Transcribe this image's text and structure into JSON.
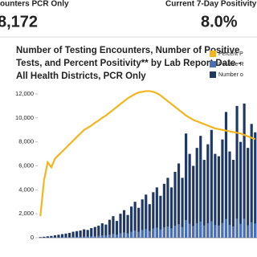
{
  "header": {
    "left_label": "ounters PCR Only",
    "left_value": "8,172",
    "right_label": "Current 7-Day Positivity",
    "right_value": "8.0%"
  },
  "chart_data": {
    "type": "bar",
    "title": [
      "Number of Testing Encounters, Number of Positive",
      "Tests, and Percent Positivity** by Lab Report Date -",
      "All Health Districts, PCR Only"
    ],
    "categories": [
      null,
      null,
      null,
      null,
      null,
      null,
      null,
      null,
      null,
      null,
      null,
      null,
      null,
      null,
      null,
      null,
      null,
      null,
      null,
      null,
      null,
      null,
      null,
      null,
      null,
      null,
      null,
      null,
      null,
      null,
      null,
      null,
      null,
      null,
      null,
      null,
      null,
      null,
      null,
      null,
      null,
      null,
      null,
      null,
      null,
      null,
      null,
      null,
      null,
      null,
      null,
      null,
      null,
      null,
      null,
      null,
      null,
      null,
      null,
      null
    ],
    "series": [
      {
        "name": "Percent P",
        "color": "#f2b51d",
        "type": "line",
        "axis": "y2",
        "values": [
          3,
          8,
          10.5,
          9.8,
          11,
          11.5,
          12,
          12.5,
          13,
          13.5,
          14,
          14.5,
          15,
          15.3,
          15.6,
          16,
          16.3,
          16.7,
          17,
          17.4,
          17.8,
          18.2,
          18.6,
          19,
          19.4,
          19.7,
          20,
          20.2,
          20.3,
          20.4,
          20.4,
          20.3,
          20.1,
          19.8,
          19.4,
          19,
          18.6,
          18.2,
          17.8,
          17.4,
          17,
          16.7,
          16.4,
          16.2,
          16,
          15.8,
          15.6,
          15.4,
          15.2,
          15.1,
          15,
          14.9,
          14.8,
          14.7,
          14.6,
          14.5,
          14.3,
          14.1,
          13.9,
          13.7
        ]
      },
      {
        "name": "Positive R",
        "color": "#4a6fb5",
        "type": "bar",
        "values": [
          2,
          6,
          13,
          15,
          22,
          29,
          36,
          44,
          52,
          68,
          77,
          87,
          105,
          100,
          125,
          144,
          163,
          200,
          187,
          261,
          320,
          255,
          372,
          437,
          369,
          504,
          591,
          500,
          646,
          734,
          570,
          774,
          844,
          693,
          873,
          940,
          781,
          1001,
          1128,
          890,
          1479,
          1169,
          984,
          1215,
          1360,
          1027,
          1217,
          1386,
          1064,
          1027,
          1232,
          1565,
          1066,
          949,
          1595,
          1160,
          1590,
          1043,
          1296,
          1188
        ]
      },
      {
        "name": "Number o",
        "color": "#1f3864",
        "type": "bar",
        "values": [
          50,
          80,
          120,
          150,
          200,
          250,
          300,
          350,
          400,
          500,
          550,
          600,
          700,
          650,
          800,
          900,
          1000,
          1200,
          1100,
          1500,
          1800,
          1400,
          2000,
          2300,
          1900,
          2600,
          3000,
          2500,
          3200,
          3600,
          2800,
          3800,
          4200,
          3500,
          4500,
          5000,
          4200,
          5500,
          6200,
          5000,
          8700,
          7000,
          6000,
          7500,
          8500,
          6500,
          7800,
          9000,
          7000,
          6800,
          8200,
          10500,
          7200,
          6500,
          11000,
          8000,
          11200,
          7500,
          9500,
          8800
        ]
      }
    ],
    "ylim": [
      0,
      12000
    ],
    "yticks": [
      {
        "value": 0,
        "label": "0"
      },
      {
        "value": 2000,
        "label": "2,000"
      },
      {
        "value": 4000,
        "label": "4,000"
      },
      {
        "value": 6000,
        "label": "6,000"
      },
      {
        "value": 8000,
        "label": "8,000"
      },
      {
        "value": 10000,
        "label": "10,000"
      },
      {
        "value": 12000,
        "label": "12,000"
      }
    ],
    "y2lim": [
      0,
      20
    ],
    "legend": "top right"
  }
}
